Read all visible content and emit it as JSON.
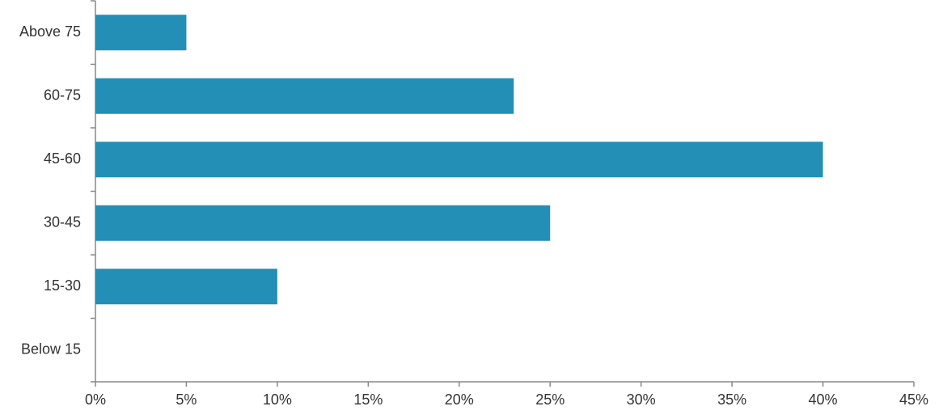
{
  "chart_data": {
    "type": "bar",
    "orientation": "horizontal",
    "categories": [
      "Above 75",
      "60-75",
      "45-60",
      "30-45",
      "15-30",
      "Below 15"
    ],
    "values": [
      5,
      23,
      40,
      25,
      10,
      0
    ],
    "color": "#238fb6",
    "xlim": [
      0,
      45
    ],
    "xticks": [
      {
        "value": 0,
        "label": "0%"
      },
      {
        "value": 5,
        "label": "5%"
      },
      {
        "value": 10,
        "label": "10%"
      },
      {
        "value": 15,
        "label": "15%"
      },
      {
        "value": 20,
        "label": "20%"
      },
      {
        "value": 25,
        "label": "25%"
      },
      {
        "value": 30,
        "label": "30%"
      },
      {
        "value": 35,
        "label": "35%"
      },
      {
        "value": 40,
        "label": "40%"
      },
      {
        "value": 45,
        "label": "45%"
      }
    ],
    "grid": false
  }
}
